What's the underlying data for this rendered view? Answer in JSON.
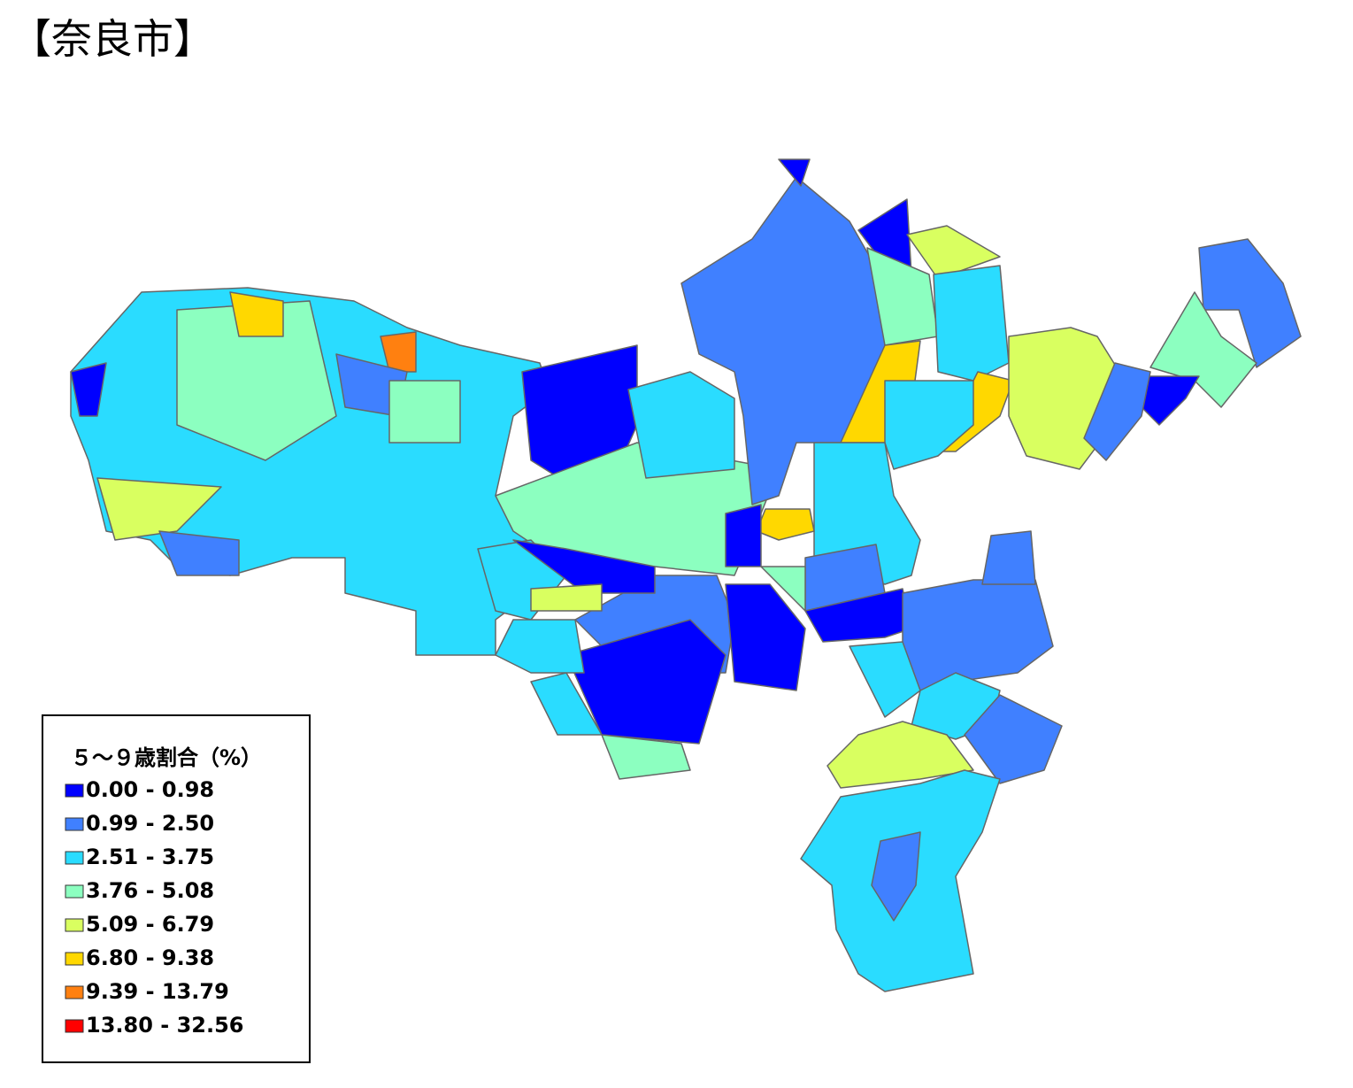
{
  "title": "【奈良市】",
  "legend": {
    "title": "５～９歳割合（%）",
    "items": [
      {
        "label": "0.00 - 0.98",
        "color": "#0000ff"
      },
      {
        "label": "0.99 - 2.50",
        "color": "#4080ff"
      },
      {
        "label": "2.51 - 3.75",
        "color": "#2adcff"
      },
      {
        "label": "3.76 - 5.08",
        "color": "#8cffc0"
      },
      {
        "label": "5.09 - 6.79",
        "color": "#d9ff60"
      },
      {
        "label": "6.80 - 9.38",
        "color": "#ffd800"
      },
      {
        "label": "9.39 - 13.79",
        "color": "#ff8010"
      },
      {
        "label": "13.80 - 32.56",
        "color": "#ff0000"
      }
    ]
  }
}
